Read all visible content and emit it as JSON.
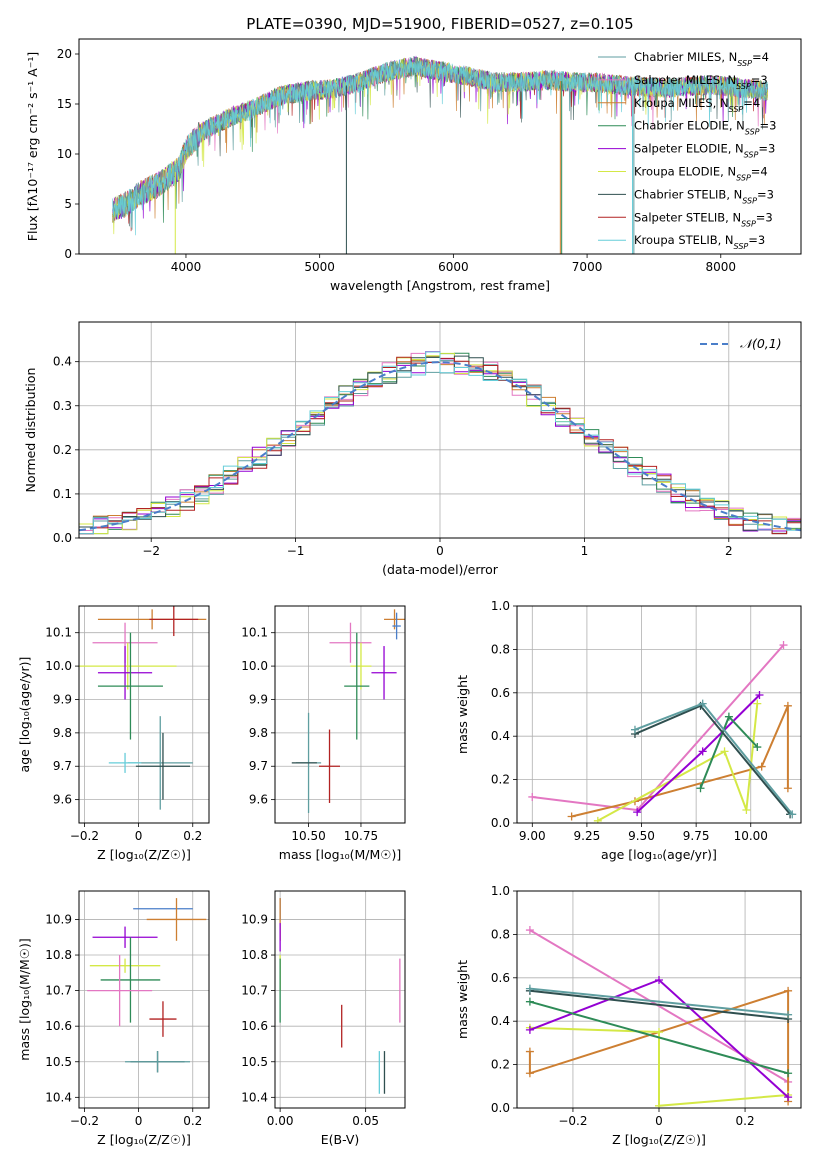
{
  "figure": {
    "title": "PLATE=0390, MJD=51900, FIBERID=0527, z=0.105"
  },
  "chart_data": [
    {
      "id": "spectrum",
      "type": "line",
      "xlabel": "wavelength [Angstrom, rest frame]",
      "ylabel": "Flux [fλ10⁻¹⁷ erg cm⁻² s⁻¹ A⁻¹]",
      "xlim": [
        3200,
        8600
      ],
      "ylim": [
        0,
        21.5
      ],
      "xticks": [
        4000,
        5000,
        6000,
        7000,
        8000
      ],
      "yticks": [
        0,
        5,
        10,
        15,
        20
      ],
      "legend_position": "top-right",
      "continuum": [
        [
          3450,
          4.3
        ],
        [
          3550,
          5.0
        ],
        [
          3650,
          6.0
        ],
        [
          3800,
          7.0
        ],
        [
          3950,
          8.5
        ],
        [
          4000,
          10.5
        ],
        [
          4100,
          12.0
        ],
        [
          4200,
          12.8
        ],
        [
          4350,
          13.8
        ],
        [
          4500,
          14.5
        ],
        [
          4700,
          15.8
        ],
        [
          4900,
          16.3
        ],
        [
          5100,
          16.5
        ],
        [
          5300,
          17.2
        ],
        [
          5500,
          18.2
        ],
        [
          5700,
          18.8
        ],
        [
          5900,
          18.3
        ],
        [
          6100,
          17.8
        ],
        [
          6300,
          17.2
        ],
        [
          6500,
          17.2
        ],
        [
          6700,
          17.4
        ],
        [
          6900,
          17.2
        ],
        [
          7100,
          17.1
        ],
        [
          7300,
          16.8
        ],
        [
          7600,
          16.6
        ],
        [
          7900,
          16.9
        ],
        [
          8100,
          16.7
        ],
        [
          8350,
          16.3
        ]
      ],
      "series": [
        {
          "name": "Chabrier MILES, N_SSP=4",
          "color": "#5f9ea0"
        },
        {
          "name": "Salpeter MILES, N_SSP=3",
          "color": "#e377c2"
        },
        {
          "name": "Kroupa MILES, N_SSP=4",
          "color": "#cd7f32"
        },
        {
          "name": "Chabrier ELODIE, N_SSP=3",
          "color": "#2e8b57"
        },
        {
          "name": "Salpeter ELODIE, N_SSP=3",
          "color": "#9400d3"
        },
        {
          "name": "Kroupa ELODIE, N_SSP=4",
          "color": "#d4e846"
        },
        {
          "name": "Chabrier STELIB, N_SSP=3",
          "color": "#2f4f4f"
        },
        {
          "name": "Salpeter STELIB, N_SSP=3",
          "color": "#b22222"
        },
        {
          "name": "Kroupa STELIB, N_SSP=3",
          "color": "#66cdd9"
        }
      ]
    },
    {
      "id": "residuals",
      "type": "line",
      "xlabel": "(data-model)/error",
      "ylabel": "Normed distribution",
      "xlim": [
        -2.5,
        2.5
      ],
      "ylim": [
        0,
        0.49
      ],
      "xticks": [
        -2,
        -1,
        0,
        1,
        2
      ],
      "yticks": [
        0.0,
        0.1,
        0.2,
        0.3,
        0.4
      ],
      "grid": true,
      "legend_position": "top-right",
      "reference_curve": {
        "name": "𝒩(0,1)",
        "color": "#4a7ec9"
      }
    },
    {
      "id": "age_vs_Z",
      "type": "scatter",
      "xlabel": "Z [log₁₀(Z/Z☉)]",
      "ylabel": "age  [log₁₀(age/yr)]",
      "xlim": [
        -0.22,
        0.26
      ],
      "ylim": [
        9.53,
        10.18
      ],
      "xticks": [
        -0.2,
        0.0,
        0.2
      ],
      "yticks": [
        9.6,
        9.7,
        9.8,
        9.9,
        10.0,
        10.1
      ],
      "grid": true,
      "points": [
        {
          "x": 0.08,
          "y": 9.71,
          "xerr": 0.12,
          "yerr": 0.14,
          "color": "#5f9ea0"
        },
        {
          "x": 0.09,
          "y": 9.7,
          "xerr": 0.1,
          "yerr": 0.1,
          "color": "#2f4f4f"
        },
        {
          "x": -0.05,
          "y": 9.71,
          "xerr": 0.06,
          "yerr": 0.03,
          "color": "#66cdd9"
        },
        {
          "x": -0.05,
          "y": 10.07,
          "xerr": 0.12,
          "yerr": 0.06,
          "color": "#e377c2"
        },
        {
          "x": 0.05,
          "y": 10.14,
          "xerr": 0.2,
          "yerr": 0.03,
          "color": "#cd7f32"
        },
        {
          "x": -0.04,
          "y": 10.0,
          "xerr": 0.18,
          "yerr": 0.07,
          "color": "#d4e846"
        },
        {
          "x": -0.05,
          "y": 9.98,
          "xerr": 0.1,
          "yerr": 0.08,
          "color": "#9400d3"
        },
        {
          "x": -0.03,
          "y": 9.94,
          "xerr": 0.12,
          "yerr": 0.16,
          "color": "#2e8b57"
        },
        {
          "x": 0.13,
          "y": 10.14,
          "xerr": 0.09,
          "yerr": 0.05,
          "color": "#b22222"
        }
      ]
    },
    {
      "id": "age_vs_mass",
      "type": "scatter",
      "xlabel": "mass [log₁₀(M/M☉)]",
      "ylabel": "",
      "xlim": [
        10.34,
        10.96
      ],
      "ylim": [
        9.53,
        10.18
      ],
      "xticks": [
        10.5,
        10.75
      ],
      "xtick_labels": [
        "10.50",
        "10.75"
      ],
      "yticks": [
        9.6,
        9.7,
        9.8,
        9.9,
        10.0,
        10.1
      ],
      "grid": true,
      "points": [
        {
          "x": 10.5,
          "y": 9.71,
          "xerr": 0.06,
          "yerr": 0.15,
          "color": "#5f9ea0"
        },
        {
          "x": 10.6,
          "y": 9.7,
          "xerr": 0.05,
          "yerr": 0.11,
          "color": "#b22222"
        },
        {
          "x": 10.48,
          "y": 9.71,
          "xerr": 0.06,
          "yerr": 0.0,
          "color": "#2f4f4f"
        },
        {
          "x": 10.7,
          "y": 10.07,
          "xerr": 0.1,
          "yerr": 0.06,
          "color": "#e377c2"
        },
        {
          "x": 10.75,
          "y": 10.0,
          "xerr": 0.05,
          "yerr": 0.07,
          "color": "#d4e846"
        },
        {
          "x": 10.86,
          "y": 9.98,
          "xerr": 0.06,
          "yerr": 0.08,
          "color": "#9400d3"
        },
        {
          "x": 10.73,
          "y": 9.94,
          "xerr": 0.06,
          "yerr": 0.16,
          "color": "#2e8b57"
        },
        {
          "x": 10.91,
          "y": 10.14,
          "xerr": 0.05,
          "yerr": 0.03,
          "color": "#cd7f32"
        },
        {
          "x": 10.92,
          "y": 10.12,
          "xerr": 0.02,
          "yerr": 0.04,
          "color": "#4a7ec9"
        }
      ]
    },
    {
      "id": "weight_vs_age",
      "type": "line",
      "xlabel": "age  [log₁₀(age/yr)]",
      "ylabel": "mass weight",
      "xlim": [
        8.93,
        10.23
      ],
      "ylim": [
        0,
        1
      ],
      "xticks": [
        9.0,
        9.25,
        9.5,
        9.75,
        10.0
      ],
      "xtick_labels": [
        "9.00",
        "9.25",
        "9.50",
        "9.75",
        "10.00"
      ],
      "yticks": [
        0.0,
        0.2,
        0.4,
        0.6,
        0.8,
        1.0
      ],
      "grid": true,
      "series": [
        {
          "color": "#e377c2",
          "x": [
            9.0,
            9.48,
            10.15
          ],
          "y": [
            0.12,
            0.06,
            0.82
          ]
        },
        {
          "color": "#cd7f32",
          "x": [
            9.18,
            9.47,
            10.05,
            10.17,
            10.17
          ],
          "y": [
            0.03,
            0.1,
            0.26,
            0.54,
            0.16
          ]
        },
        {
          "color": "#d4e846",
          "x": [
            9.3,
            9.88,
            9.98,
            10.03
          ],
          "y": [
            0.01,
            0.33,
            0.06,
            0.55
          ]
        },
        {
          "color": "#9400d3",
          "x": [
            9.48,
            9.78,
            10.04
          ],
          "y": [
            0.05,
            0.33,
            0.59
          ]
        },
        {
          "color": "#2e8b57",
          "x": [
            9.77,
            9.9,
            10.03
          ],
          "y": [
            0.16,
            0.49,
            0.35
          ]
        },
        {
          "color": "#2f4f4f",
          "x": [
            9.47,
            9.77,
            10.18
          ],
          "y": [
            0.41,
            0.54,
            0.04
          ]
        },
        {
          "color": "#5f9ea0",
          "x": [
            9.47,
            9.78,
            10.19
          ],
          "y": [
            0.43,
            0.55,
            0.04
          ]
        }
      ]
    },
    {
      "id": "mass_vs_Z",
      "type": "scatter",
      "xlabel": "Z [log₁₀(Z/Z☉)]",
      "ylabel": "mass [log₁₀(M/M☉)]",
      "xlim": [
        -0.22,
        0.26
      ],
      "ylim": [
        10.37,
        10.98
      ],
      "xticks": [
        -0.2,
        0.0,
        0.2
      ],
      "yticks": [
        10.4,
        10.5,
        10.6,
        10.7,
        10.8,
        10.9
      ],
      "grid": true,
      "points": [
        {
          "x": 0.09,
          "y": 10.93,
          "xerr": 0.11,
          "yerr": 0.0,
          "color": "#4a7ec9"
        },
        {
          "x": 0.14,
          "y": 10.9,
          "xerr": 0.11,
          "yerr": 0.06,
          "color": "#cd7f32"
        },
        {
          "x": -0.05,
          "y": 10.85,
          "xerr": 0.12,
          "yerr": 0.03,
          "color": "#9400d3"
        },
        {
          "x": -0.05,
          "y": 10.77,
          "xerr": 0.13,
          "yerr": 0.02,
          "color": "#d4e846"
        },
        {
          "x": -0.03,
          "y": 10.73,
          "xerr": 0.11,
          "yerr": 0.12,
          "color": "#2e8b57"
        },
        {
          "x": -0.07,
          "y": 10.7,
          "xerr": 0.12,
          "yerr": 0.1,
          "color": "#e377c2"
        },
        {
          "x": 0.09,
          "y": 10.62,
          "xerr": 0.05,
          "yerr": 0.05,
          "color": "#b22222"
        },
        {
          "x": 0.07,
          "y": 10.5,
          "xerr": 0.1,
          "yerr": 0.03,
          "color": "#2f4f4f"
        },
        {
          "x": 0.07,
          "y": 10.5,
          "xerr": 0.12,
          "yerr": 0.03,
          "color": "#5f9ea0"
        }
      ]
    },
    {
      "id": "mass_vs_ebv",
      "type": "scatter",
      "xlabel": "E(B-V)",
      "ylabel": "",
      "xlim": [
        -0.003,
        0.073
      ],
      "ylim": [
        10.37,
        10.98
      ],
      "xticks": [
        0.0,
        0.05
      ],
      "xtick_labels": [
        "0.00",
        "0.05"
      ],
      "yticks": [
        10.4,
        10.5,
        10.6,
        10.7,
        10.8,
        10.9
      ],
      "grid": true,
      "points": [
        {
          "x": 0.0,
          "y": 10.93,
          "xerr": 0.0,
          "yerr": 0.03,
          "color": "#4a7ec9"
        },
        {
          "x": 0.0,
          "y": 10.9,
          "xerr": 0.0,
          "yerr": 0.06,
          "color": "#cd7f32"
        },
        {
          "x": 0.0,
          "y": 10.85,
          "xerr": 0.0,
          "yerr": 0.04,
          "color": "#9400d3"
        },
        {
          "x": 0.0,
          "y": 10.75,
          "xerr": 0.0,
          "yerr": 0.05,
          "color": "#d4e846"
        },
        {
          "x": 0.0,
          "y": 10.7,
          "xerr": 0.0,
          "yerr": 0.09,
          "color": "#2e8b57"
        },
        {
          "x": 0.036,
          "y": 10.6,
          "xerr": 0.0,
          "yerr": 0.06,
          "color": "#b22222"
        },
        {
          "x": 0.058,
          "y": 10.47,
          "xerr": 0.0,
          "yerr": 0.06,
          "color": "#66cdd9"
        },
        {
          "x": 0.061,
          "y": 10.47,
          "xerr": 0.0,
          "yerr": 0.06,
          "color": "#2f4f4f"
        },
        {
          "x": 0.07,
          "y": 10.7,
          "xerr": 0.0,
          "yerr": 0.09,
          "color": "#e377c2"
        }
      ]
    },
    {
      "id": "weight_vs_Z",
      "type": "line",
      "xlabel": "Z [log₁₀(Z/Z☉)]",
      "ylabel": "mass weight",
      "xlim": [
        -0.33,
        0.33
      ],
      "ylim": [
        0,
        1
      ],
      "xticks": [
        -0.2,
        0.0,
        0.2
      ],
      "yticks": [
        0.0,
        0.2,
        0.4,
        0.6,
        0.8,
        1.0
      ],
      "grid": true,
      "series": [
        {
          "color": "#e377c2",
          "x": [
            -0.3,
            0.3
          ],
          "y": [
            0.82,
            0.12
          ]
        },
        {
          "color": "#cd7f32",
          "x": [
            -0.3,
            -0.3,
            0.3,
            0.3
          ],
          "y": [
            0.26,
            0.16,
            0.54,
            0.03
          ]
        },
        {
          "color": "#d4e846",
          "x": [
            -0.3,
            0.0,
            0.0,
            0.3
          ],
          "y": [
            0.37,
            0.35,
            0.01,
            0.06
          ]
        },
        {
          "color": "#9400d3",
          "x": [
            -0.3,
            0.0,
            0.3
          ],
          "y": [
            0.36,
            0.59,
            0.05
          ]
        },
        {
          "color": "#2e8b57",
          "x": [
            -0.3,
            0.3
          ],
          "y": [
            0.49,
            0.16
          ]
        },
        {
          "color": "#2f4f4f",
          "x": [
            -0.3,
            0.3
          ],
          "y": [
            0.54,
            0.41
          ]
        },
        {
          "color": "#5f9ea0",
          "x": [
            -0.3,
            0.3
          ],
          "y": [
            0.55,
            0.43
          ]
        }
      ]
    }
  ]
}
